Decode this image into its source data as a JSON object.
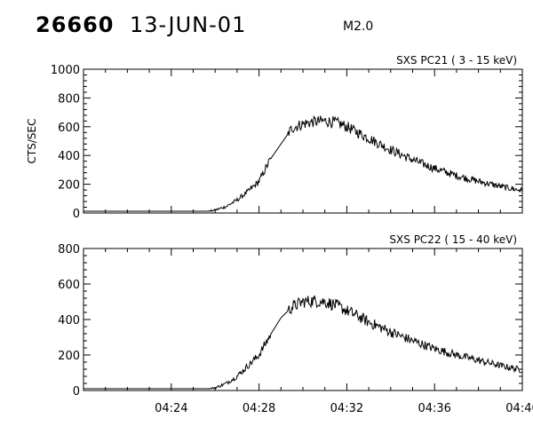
{
  "header": {
    "event_id": "26660",
    "date": "13-JUN-01",
    "flare_class": "M2.0"
  },
  "chart_data": [
    {
      "type": "line",
      "title": "SXS PC21  (  3 - 15 keV)",
      "ylabel": "CTS/SEC",
      "xlim": [
        "04:20",
        "04:40"
      ],
      "ylim": [
        0,
        1000
      ],
      "yticks": [
        0,
        200,
        400,
        600,
        800,
        1000
      ],
      "xticks": [
        "04:24",
        "04:28",
        "04:32",
        "04:36",
        "04:40"
      ],
      "show_xticklabels": false,
      "grid": false,
      "series": [
        {
          "x": [
            "04:20",
            "04:23",
            "04:24",
            "04:25",
            "04:26",
            "04:26:30",
            "04:27",
            "04:27:30",
            "04:28",
            "04:28:30",
            "04:29",
            "04:29:30",
            "04:30",
            "04:30:30",
            "04:31",
            "04:31:30",
            "04:32",
            "04:32:30",
            "04:33",
            "04:34",
            "04:35",
            "04:36",
            "04:37",
            "04:38",
            "04:39",
            "04:40"
          ],
          "y": [
            -20,
            -20,
            -18,
            -10,
            20,
            45,
            90,
            150,
            220,
            370,
            480,
            590,
            620,
            635,
            640,
            630,
            600,
            560,
            520,
            440,
            370,
            310,
            260,
            220,
            185,
            155
          ]
        }
      ]
    },
    {
      "type": "line",
      "title": "SXS PC22  ( 15 - 40 keV)",
      "ylabel": "",
      "xlim": [
        "04:20",
        "04:40"
      ],
      "ylim": [
        0,
        800
      ],
      "yticks": [
        0,
        200,
        400,
        600,
        800
      ],
      "xticks": [
        "04:24",
        "04:28",
        "04:32",
        "04:36",
        "04:40"
      ],
      "show_xticklabels": true,
      "grid": false,
      "series": [
        {
          "x": [
            "04:20",
            "04:23",
            "04:24",
            "04:25",
            "04:26",
            "04:26:30",
            "04:27",
            "04:27:30",
            "04:28",
            "04:28:30",
            "04:29",
            "04:29:30",
            "04:30",
            "04:30:30",
            "04:31",
            "04:31:30",
            "04:32",
            "04:32:30",
            "04:33",
            "04:34",
            "04:35",
            "04:36",
            "04:37",
            "04:38",
            "04:39",
            "04:40"
          ],
          "y": [
            -15,
            -15,
            -13,
            -6,
            15,
            40,
            80,
            140,
            200,
            310,
            410,
            470,
            500,
            505,
            500,
            480,
            450,
            420,
            385,
            330,
            280,
            235,
            200,
            170,
            140,
            115
          ]
        }
      ]
    }
  ]
}
